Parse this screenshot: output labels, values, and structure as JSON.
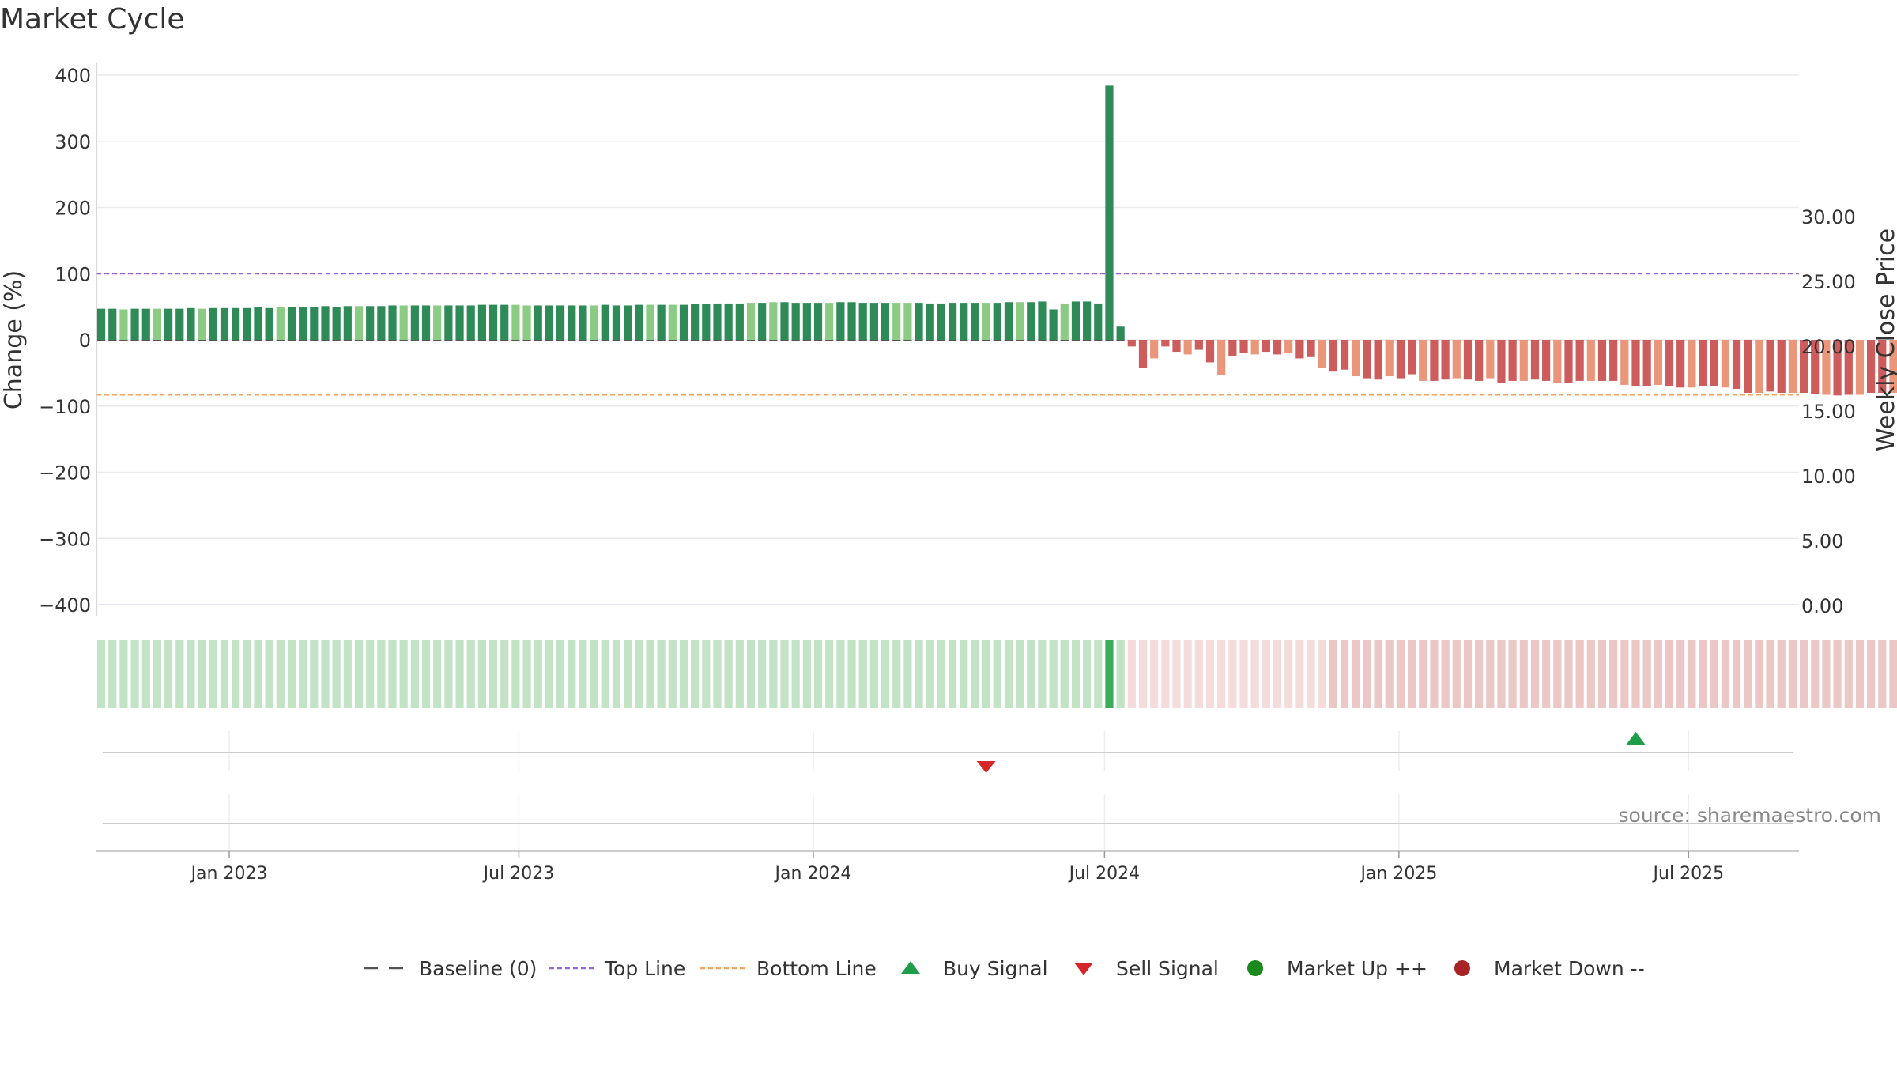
{
  "chart_data": {
    "type": "bar",
    "title": "Market Cycle",
    "ylabel_left": "Change (%)",
    "ylabel_right": "Weekly Close Price",
    "ylim_left": [
      -400,
      400
    ],
    "ylim_right": [
      0,
      34
    ],
    "yticks_left": [
      400,
      300,
      200,
      100,
      0,
      -100,
      -200,
      -300,
      -400
    ],
    "yticks_left_labels": [
      "400",
      "300",
      "200",
      "100",
      "0",
      "−100",
      "−200",
      "−300",
      "−400"
    ],
    "yticks_right": [
      30,
      25,
      20,
      15,
      10,
      5,
      0
    ],
    "yticks_right_labels": [
      "30.00",
      "25.00",
      "20.00",
      "15.00",
      "10.00",
      "5.00",
      "0.00"
    ],
    "x_range": [
      "2022-10-10",
      "2025-09-08"
    ],
    "xticks": [
      {
        "date": "2023-01-01",
        "label": "Jan 2023"
      },
      {
        "date": "2023-07-01",
        "label": "Jul 2023"
      },
      {
        "date": "2024-01-01",
        "label": "Jan 2024"
      },
      {
        "date": "2024-07-01",
        "label": "Jul 2024"
      },
      {
        "date": "2025-01-01",
        "label": "Jan 2025"
      },
      {
        "date": "2025-07-01",
        "label": "Jul 2025"
      }
    ],
    "grid": true,
    "top_line": 100,
    "bottom_line": -83,
    "baseline": 0,
    "series": [
      {
        "name": "Change (%)",
        "start_date": "2022-10-13",
        "interval_days": 7,
        "values": [
          47,
          47,
          46,
          47,
          47,
          47,
          47,
          47,
          48,
          47,
          48,
          48,
          48,
          48,
          49,
          48,
          49,
          49,
          50,
          50,
          51,
          50,
          51,
          51,
          51,
          51,
          52,
          52,
          52,
          52,
          52,
          52,
          52,
          52,
          53,
          53,
          53,
          53,
          52,
          52,
          52,
          52,
          52,
          52,
          52,
          53,
          52,
          52,
          53,
          53,
          53,
          53,
          53,
          54,
          54,
          55,
          55,
          55,
          56,
          56,
          57,
          57,
          56,
          56,
          56,
          56,
          57,
          57,
          56,
          56,
          56,
          56,
          56,
          56,
          55,
          55,
          56,
          56,
          56,
          56,
          56,
          57,
          57,
          57,
          58,
          46,
          55,
          58,
          58,
          55,
          384,
          20,
          -10,
          -42,
          -28,
          -10,
          -18,
          -22,
          -15,
          -34,
          -53,
          -25,
          -20,
          -22,
          -18,
          -22,
          -20,
          -28,
          -26,
          -42,
          -48,
          -45,
          -55,
          -58,
          -60,
          -55,
          -58,
          -52,
          -62,
          -62,
          -60,
          -58,
          -60,
          -62,
          -58,
          -65,
          -62,
          -62,
          -60,
          -62,
          -65,
          -65,
          -62,
          -62,
          -62,
          -62,
          -68,
          -70,
          -70,
          -68,
          -70,
          -72,
          -72,
          -70,
          -70,
          -72,
          -74,
          -80,
          -80,
          -78,
          -80,
          -80,
          -80,
          -82,
          -83,
          -84,
          -83,
          -83,
          -80,
          -80,
          -80,
          -80,
          -80,
          -79,
          -80,
          -82,
          -82,
          -83,
          -83,
          -81,
          -82,
          -83,
          -83,
          -80,
          -80,
          -76
        ]
      }
    ],
    "signals": [
      {
        "type": "Sell Signal",
        "date": "2024-04-18"
      },
      {
        "type": "Buy Signal",
        "date": "2025-05-29"
      }
    ],
    "legend": {
      "placement": "bottom-center",
      "entries": [
        "Baseline (0)",
        "Top Line",
        "Bottom Line",
        "Buy Signal",
        "Sell Signal",
        "Market Up ++",
        "Market Down --"
      ]
    },
    "colors": {
      "bar_up_dark": "#2e8b57",
      "bar_up_light": "#8ccb84",
      "bar_down_dark": "#cd5c5c",
      "bar_down_light": "#e9967a",
      "top_line": "#9966cc",
      "bottom_line": "#f4a460",
      "buy": "#1e9e4a",
      "sell": "#d62728",
      "market_up": "#1a8a1a",
      "market_down": "#a82424",
      "strip_up": "#c2e3c6",
      "strip_down": "#ebc8c6"
    },
    "source": "source: sharemaestro.com"
  }
}
